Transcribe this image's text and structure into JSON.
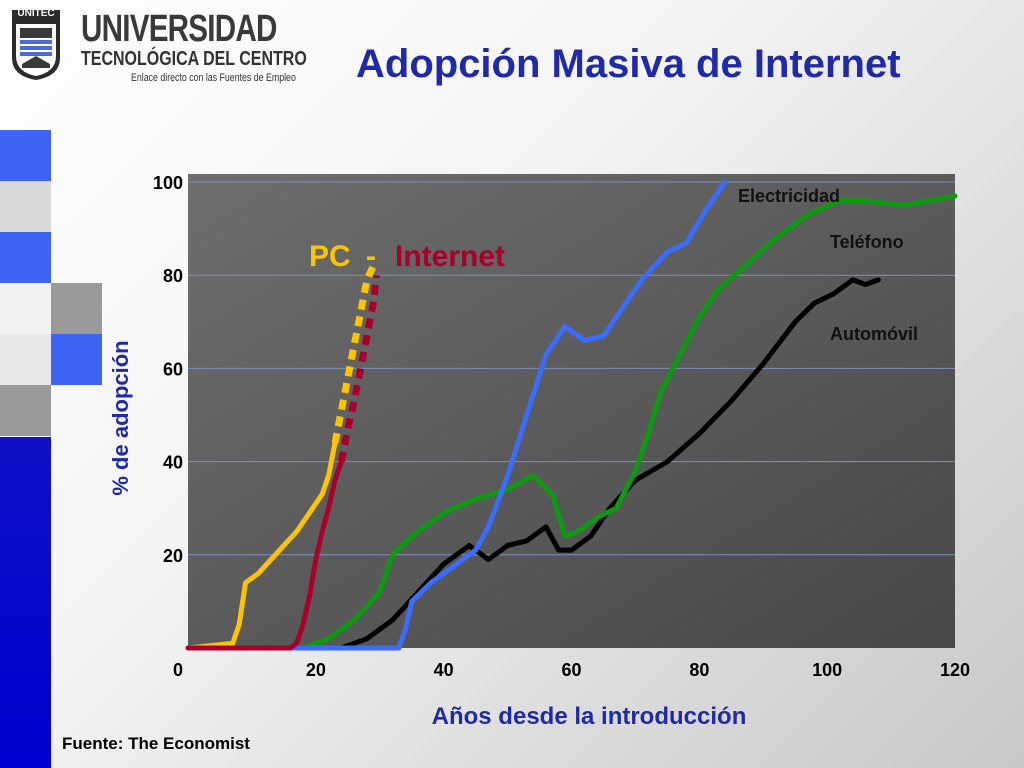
{
  "header": {
    "logo_icon": "unitec-crest-icon",
    "logo_name": "UNITEC",
    "logo_line1": "UNIVERSIDAD",
    "logo_line2": "TECNOLÓGICA DEL CENTRO",
    "logo_line3": "Enlace directo con las Fuentes de Empleo",
    "title": "Adopción Masiva de Internet"
  },
  "colors": {
    "title": "#1f2aa8",
    "axis_label": "#1f2aa8",
    "plot_bg": "#555555",
    "pc": "#ffc400",
    "internet": "#a8002a",
    "electricidad": "#3a6cff",
    "telefono": "#0c9a10",
    "automovil": "#000000"
  },
  "footer": {
    "source": "Fuente: The Economist"
  },
  "chart_data": {
    "type": "line",
    "xlabel": "Años desde la introducción",
    "ylabel": "% de adopción",
    "xlim": [
      0,
      120
    ],
    "ylim": [
      0,
      100
    ],
    "xticks": [
      "0",
      "20",
      "40",
      "60",
      "80",
      "100",
      "120"
    ],
    "yticks": [
      "20",
      "40",
      "60",
      "80",
      "100"
    ],
    "grid": true,
    "series_label_pc": "PC",
    "series_label_sep": "-",
    "series_label_internet": "Internet",
    "series": [
      {
        "name": "Electricidad",
        "style": "solid",
        "x": [
          0,
          33,
          34,
          35,
          38,
          42,
          45,
          47,
          50,
          53,
          56,
          59,
          62,
          65,
          68,
          71,
          75,
          78,
          81,
          84
        ],
        "y": [
          0,
          0,
          4,
          10,
          14,
          18,
          21,
          26,
          37,
          50,
          63,
          69,
          66,
          67,
          73,
          79,
          85,
          87,
          94,
          100
        ]
      },
      {
        "name": "Teléfono",
        "style": "solid",
        "x": [
          18,
          22,
          26,
          30,
          32,
          35,
          40,
          45,
          50,
          54,
          57,
          59,
          61,
          64,
          67,
          70,
          72,
          74,
          77,
          80,
          83,
          88,
          92,
          97,
          102,
          106,
          112,
          116,
          120
        ],
        "y": [
          0,
          2,
          6,
          12,
          20,
          24,
          29,
          32,
          34,
          37,
          33,
          24,
          25,
          28,
          30,
          38,
          46,
          55,
          63,
          71,
          77,
          83,
          88,
          93,
          96,
          96,
          95,
          96,
          97
        ]
      },
      {
        "name": "Automóvil",
        "style": "solid",
        "x": [
          24,
          28,
          32,
          36,
          40,
          44,
          47,
          50,
          53,
          56,
          58,
          60,
          63,
          66,
          70,
          75,
          80,
          85,
          90,
          95,
          98,
          101,
          104,
          106,
          108
        ],
        "y": [
          0,
          2,
          6,
          12,
          18,
          22,
          19,
          22,
          23,
          26,
          21,
          21,
          24,
          30,
          36,
          40,
          46,
          53,
          61,
          70,
          74,
          76,
          79,
          78,
          79
        ]
      },
      {
        "name": "PC",
        "style": "solid-dashed",
        "x": [
          0,
          7,
          8,
          9,
          11,
          13,
          15,
          17,
          19,
          21,
          22,
          23,
          24,
          25,
          26,
          27,
          28,
          29
        ],
        "y": [
          0,
          1,
          5,
          14,
          16,
          19,
          22,
          25,
          29,
          33,
          37,
          44,
          51,
          58,
          65,
          72,
          79,
          82
        ]
      },
      {
        "name": "Internet",
        "style": "solid-dashed",
        "x": [
          0,
          16,
          17,
          18,
          19,
          20,
          21,
          22,
          23,
          24,
          25,
          26,
          27,
          28,
          29,
          29.5
        ],
        "y": [
          0,
          0,
          1,
          5,
          11,
          19,
          25,
          30,
          36,
          40,
          47,
          53,
          60,
          67,
          74,
          80
        ]
      }
    ]
  }
}
